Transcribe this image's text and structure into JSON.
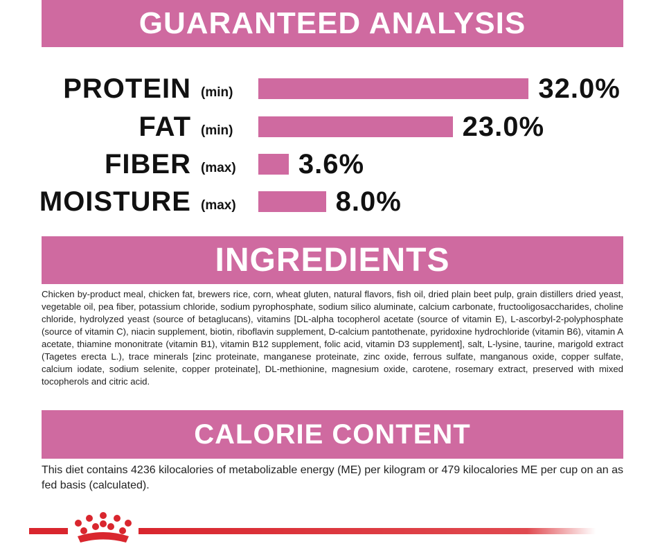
{
  "analysis": {
    "title": "GUARANTEED ANALYSIS",
    "rows": [
      {
        "name": "PROTEIN",
        "qualifier": "(min)",
        "value": 32,
        "value_label": "32.0%"
      },
      {
        "name": "FAT",
        "qualifier": "(min)",
        "value": 23,
        "value_label": "23.0%"
      },
      {
        "name": "FIBER",
        "qualifier": "(max)",
        "value": 3.6,
        "value_label": "3.6%"
      },
      {
        "name": "MOISTURE",
        "qualifier": "(max)",
        "value": 8,
        "value_label": "8.0%"
      }
    ]
  },
  "ingredients": {
    "title": "INGREDIENTS",
    "text": "Chicken by-product meal, chicken fat, brewers rice, corn, wheat gluten, natural flavors, fish oil, dried plain beet pulp, grain distillers dried yeast, vegetable oil, pea fiber, potassium chloride, sodium pyrophosphate, sodium silico aluminate, calcium carbonate, fructooligosaccharides, choline chloride, hydrolyzed yeast (source of betaglucans), vitamins [DL-alpha tocopherol acetate (source of vitamin E), L-ascorbyl-2-polyphosphate (source of vitamin C), niacin supplement, biotin, riboflavin supplement, D-calcium pantothenate, pyridoxine hydrochloride (vitamin B6), vitamin A acetate, thiamine mononitrate (vitamin B1), vitamin B12 supplement, folic acid, vitamin D3 supplement], salt, L-lysine, taurine, marigold extract (Tagetes erecta L.), trace minerals [zinc proteinate, manganese proteinate, zinc oxide, ferrous sulfate, manganous oxide, copper sulfate, calcium iodate, sodium selenite, copper proteinate], DL-methionine, magnesium oxide, carotene, rosemary extract, preserved with mixed tocopherols and citric acid."
  },
  "calorie": {
    "title": "CALORIE CONTENT",
    "text": "This diet contains 4236 kilocalories of metabolizable energy (ME) per kilogram or 479 kilocalories ME per cup on an as fed basis (calculated)."
  }
}
